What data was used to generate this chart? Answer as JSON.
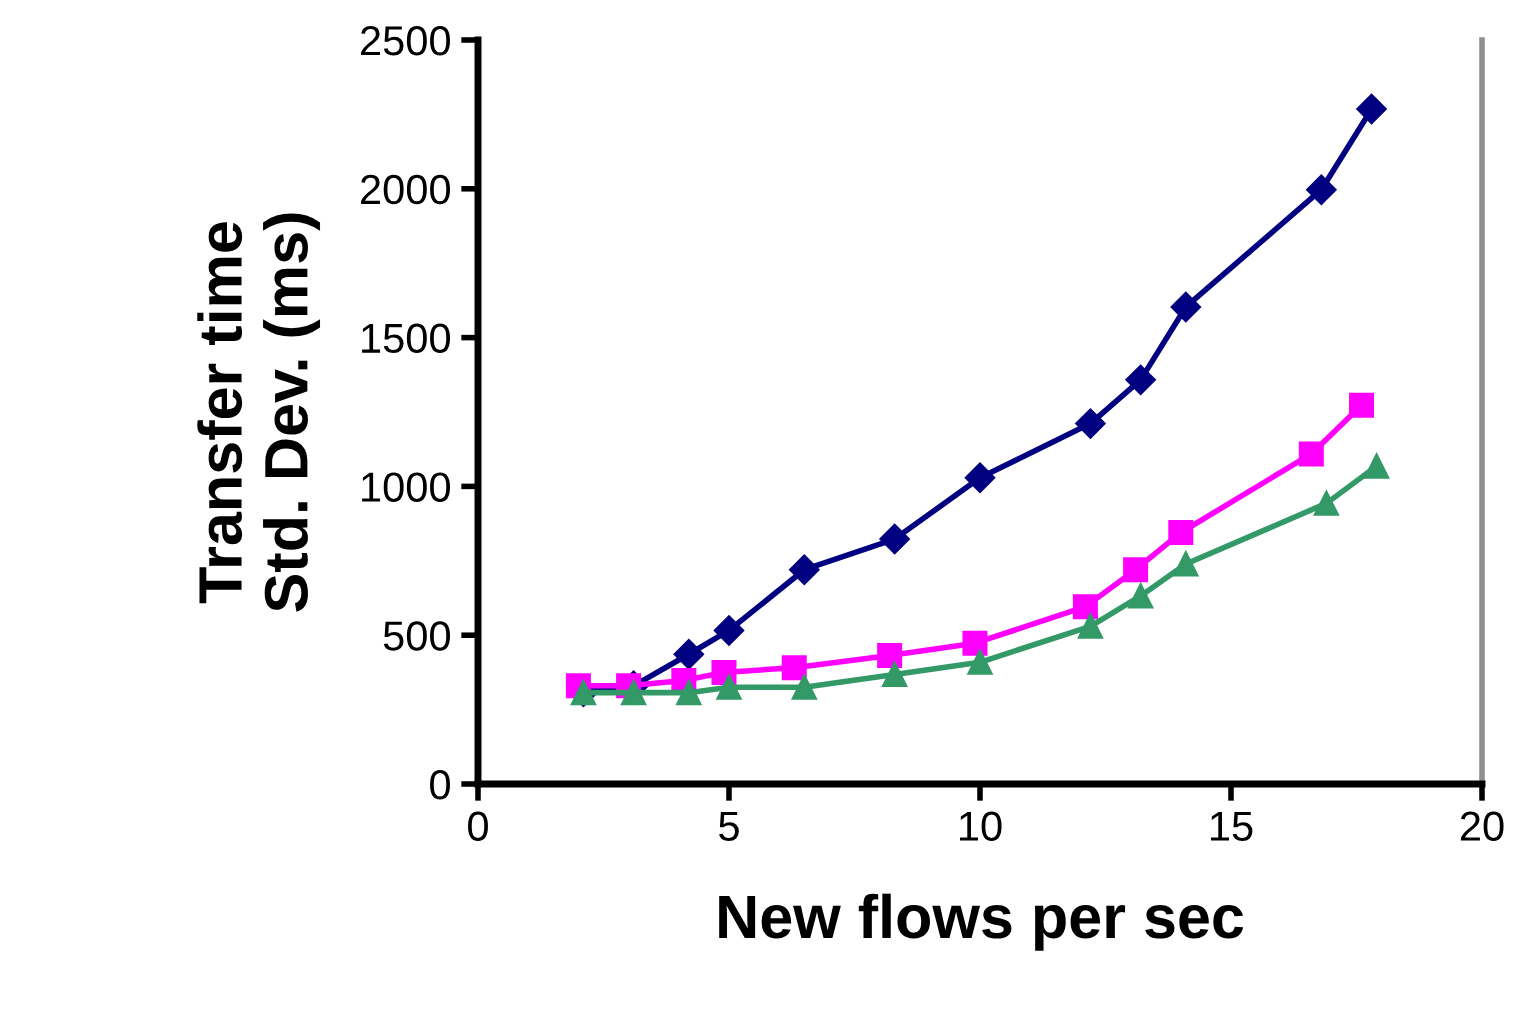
{
  "chart_data": {
    "type": "line",
    "xlabel": "New flows per sec",
    "ylabel": "Transfer time\nStd. Dev. (ms)",
    "xlim": [
      0,
      20
    ],
    "xticks": [
      0,
      5,
      10,
      15,
      20
    ],
    "ylim": [
      0,
      2500
    ],
    "yticks": [
      0,
      500,
      1000,
      1500,
      2000,
      2500
    ],
    "grid": false,
    "legend": false,
    "series": [
      {
        "color": "#000080",
        "marker": "diamond",
        "x": [
          2.1,
          3.1,
          4.2,
          5.0,
          6.5,
          8.3,
          10.0,
          12.2,
          13.2,
          14.1,
          16.8,
          17.8
        ],
        "values": [
          310,
          330,
          436,
          516,
          720,
          823,
          1029,
          1211,
          1358,
          1603,
          1997,
          2268
        ]
      },
      {
        "color": "#ff00ff",
        "marker": "square",
        "x": [
          2.0,
          3.0,
          4.1,
          4.9,
          6.3,
          8.2,
          9.9,
          12.1,
          13.1,
          14.0,
          16.6,
          17.6
        ],
        "values": [
          330,
          330,
          348,
          375,
          391,
          432,
          473,
          596,
          720,
          845,
          1109,
          1273
        ]
      },
      {
        "color": "#339966",
        "marker": "triangle",
        "x": [
          2.1,
          3.1,
          4.2,
          5.0,
          6.5,
          8.3,
          10.0,
          12.2,
          13.2,
          14.1,
          16.9,
          17.9
        ],
        "values": [
          307,
          307,
          307,
          325,
          325,
          368,
          409,
          530,
          632,
          739,
          943,
          1068
        ]
      }
    ]
  }
}
